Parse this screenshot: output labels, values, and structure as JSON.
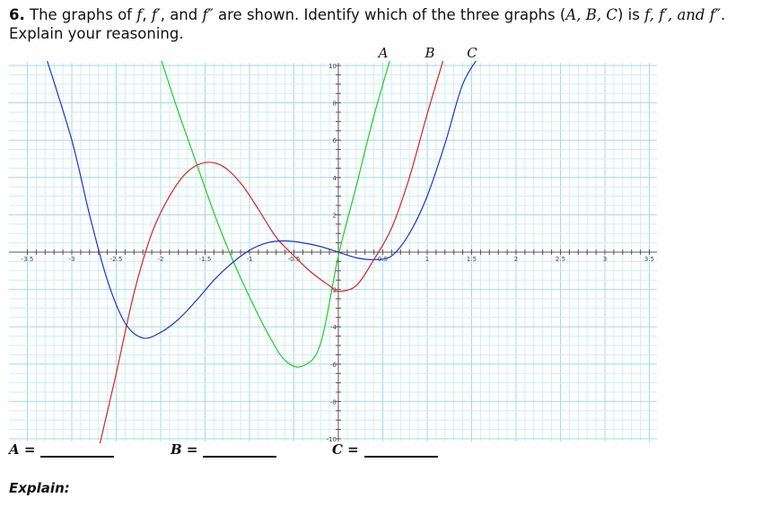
{
  "question": {
    "number": "6.",
    "text_1": "The graphs of ",
    "f": "f",
    "comma_1": ", ",
    "fp": "f′",
    "comma_2": ", and ",
    "fpp": "f″",
    "text_2": " are shown. Identify which of the three graphs (",
    "labels": "A, B, C",
    "text_3": ") is ",
    "list": "f, f′, and f″",
    "text_4": ".",
    "line2": "Explain your reasoning."
  },
  "graph_labels": {
    "A": "A",
    "B": "B",
    "C": "C"
  },
  "colors": {
    "A": "#22cc22",
    "B": "#dd2222",
    "C": "#2233cc",
    "grid_minor": "#cdeef5",
    "grid_major": "#9fdbe8",
    "axis": "#555555"
  },
  "chart_data": {
    "type": "line",
    "xlim": [
      -3.5,
      3.5
    ],
    "ylim": [
      -10,
      10
    ],
    "grid": true,
    "x_ticks": [
      "-3.5",
      "-3",
      "-2.5",
      "-2",
      "-1.5",
      "-1",
      "-0.5",
      "0.5",
      "1",
      "1.5",
      "2",
      "2.5",
      "3",
      "3.5"
    ],
    "x_tick_values": [
      -3.5,
      -3,
      -2.5,
      -2,
      -1.5,
      -1,
      -0.5,
      0.5,
      1,
      1.5,
      2,
      2.5,
      3,
      3.5
    ],
    "y_ticks": [
      "10",
      "8",
      "6",
      "4",
      "2",
      "-2",
      "-4",
      "-6",
      "-8",
      "-10"
    ],
    "y_tick_values": [
      10,
      8,
      6,
      4,
      2,
      -2,
      -4,
      -6,
      -8,
      -10
    ],
    "series": [
      {
        "name": "A",
        "x": [
          -2,
          -1.8,
          -1.6,
          -1.4,
          -1.2,
          -1.0,
          -0.8,
          -0.6,
          -0.4,
          -0.2,
          0,
          0.2,
          0.4,
          0.6
        ],
        "y": [
          10.4,
          7.5,
          4.8,
          2.1,
          -0.3,
          -2.4,
          -4.3,
          -5.8,
          -6.1,
          -4.9,
          -0.2,
          3.5,
          7.3,
          10.6
        ]
      },
      {
        "name": "B",
        "x": [
          -2.7,
          -2.5,
          -2.3,
          -2.1,
          -1.9,
          -1.7,
          -1.5,
          -1.3,
          -1.1,
          -0.9,
          -0.7,
          -0.5,
          -0.3,
          -0.1,
          0,
          0.2,
          0.4,
          0.6,
          0.8,
          1.0,
          1.2
        ],
        "y": [
          -10.6,
          -6.5,
          -2.2,
          1.0,
          3.0,
          4.3,
          4.8,
          4.6,
          3.7,
          2.3,
          0.8,
          -0.2,
          -1.1,
          -1.8,
          -2.1,
          -1.8,
          -0.4,
          1.3,
          4.0,
          7.4,
          10.6
        ]
      },
      {
        "name": "C",
        "x": [
          -3.3,
          -3.0,
          -2.8,
          -2.6,
          -2.4,
          -2.2,
          -2.0,
          -1.8,
          -1.6,
          -1.4,
          -1.2,
          -1.0,
          -0.8,
          -0.6,
          -0.4,
          -0.2,
          0,
          0.2,
          0.4,
          0.6,
          0.8,
          1.0,
          1.2,
          1.4,
          1.6
        ],
        "y": [
          10.6,
          6.0,
          2.0,
          -1.5,
          -3.8,
          -4.6,
          -4.3,
          -3.6,
          -2.6,
          -1.5,
          -0.6,
          0.1,
          0.5,
          0.6,
          0.5,
          0.3,
          0.0,
          -0.3,
          -0.4,
          -0.2,
          1.0,
          3.0,
          5.8,
          9.0,
          10.6
        ]
      }
    ]
  },
  "answers": {
    "A_label": "A",
    "B_label": "B",
    "C_label": "C",
    "equals": " ="
  },
  "explain_label": "Explain:"
}
